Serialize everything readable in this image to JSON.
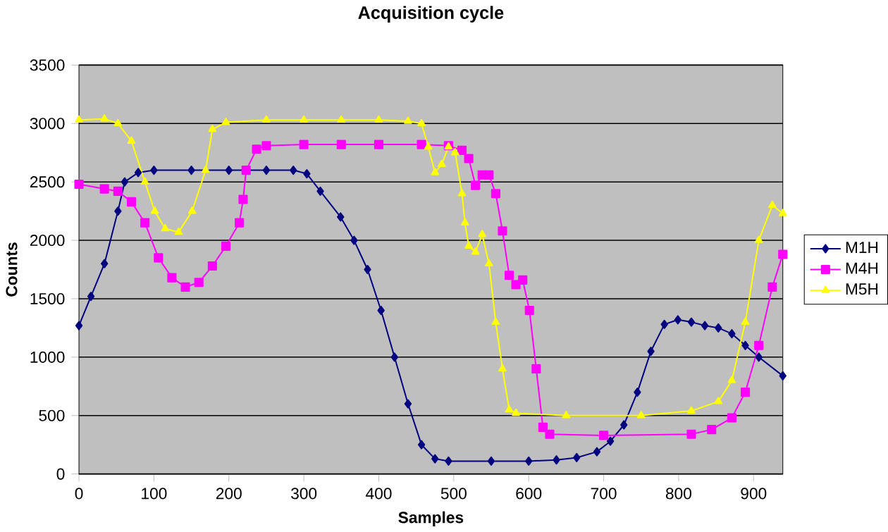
{
  "chart_data": {
    "type": "line",
    "title": "Acquisition cycle",
    "xlabel": "Samples",
    "ylabel": "Counts",
    "xlim": [
      0,
      939
    ],
    "ylim": [
      0,
      3500
    ],
    "xticks": [
      0,
      100,
      200,
      300,
      400,
      500,
      600,
      700,
      800,
      900
    ],
    "yticks": [
      0,
      500,
      1000,
      1500,
      2000,
      2500,
      3000,
      3500
    ],
    "grid": "y",
    "legend": "right",
    "line_style": "solid",
    "series": [
      {
        "name": "M1H",
        "color": "#000080",
        "marker": "diamond",
        "x": [
          0,
          16,
          34,
          52,
          61,
          79,
          100,
          150,
          200,
          250,
          286,
          304,
          322,
          349,
          367,
          385,
          403,
          421,
          439,
          457,
          475,
          493,
          550,
          600,
          637,
          664,
          691,
          709,
          727,
          745,
          763,
          781,
          799,
          817,
          835,
          853,
          871,
          889,
          907,
          939
        ],
        "values": [
          1270,
          1520,
          1800,
          2250,
          2500,
          2580,
          2600,
          2600,
          2600,
          2600,
          2600,
          2570,
          2420,
          2200,
          2000,
          1750,
          1400,
          1000,
          600,
          250,
          130,
          110,
          110,
          110,
          120,
          140,
          190,
          280,
          420,
          700,
          1050,
          1280,
          1320,
          1300,
          1270,
          1250,
          1200,
          1100,
          1000,
          840
        ]
      },
      {
        "name": "M4H",
        "color": "#ff00ff",
        "marker": "square",
        "x": [
          0,
          34,
          52,
          70,
          88,
          106,
          124,
          142,
          160,
          178,
          196,
          214,
          219,
          223,
          237,
          250,
          300,
          350,
          400,
          457,
          493,
          511,
          520,
          529,
          538,
          547,
          556,
          565,
          574,
          583,
          592,
          601,
          610,
          619,
          628,
          700,
          817,
          844,
          871,
          889,
          907,
          925,
          939
        ],
        "values": [
          2480,
          2440,
          2420,
          2330,
          2150,
          1850,
          1680,
          1600,
          1640,
          1780,
          1950,
          2150,
          2350,
          2600,
          2780,
          2810,
          2820,
          2820,
          2820,
          2820,
          2810,
          2770,
          2700,
          2470,
          2560,
          2560,
          2400,
          2080,
          1700,
          1620,
          1660,
          1400,
          900,
          400,
          340,
          330,
          340,
          380,
          480,
          700,
          1100,
          1600,
          1880
        ]
      },
      {
        "name": "M5H",
        "color": "#ffff00",
        "marker": "triangle",
        "x": [
          0,
          34,
          52,
          70,
          88,
          101,
          115,
          133,
          151,
          169,
          178,
          196,
          250,
          300,
          350,
          400,
          439,
          457,
          466,
          475,
          484,
          493,
          502,
          511,
          515,
          520,
          529,
          538,
          547,
          556,
          565,
          574,
          583,
          650,
          750,
          817,
          853,
          871,
          889,
          907,
          925,
          939
        ],
        "values": [
          3030,
          3040,
          3000,
          2850,
          2500,
          2250,
          2100,
          2070,
          2250,
          2600,
          2950,
          3010,
          3030,
          3030,
          3030,
          3030,
          3020,
          3000,
          2800,
          2580,
          2650,
          2800,
          2750,
          2400,
          2150,
          1950,
          1900,
          2050,
          1800,
          1300,
          900,
          550,
          520,
          500,
          500,
          540,
          620,
          800,
          1300,
          2000,
          2300,
          2230
        ]
      }
    ]
  }
}
